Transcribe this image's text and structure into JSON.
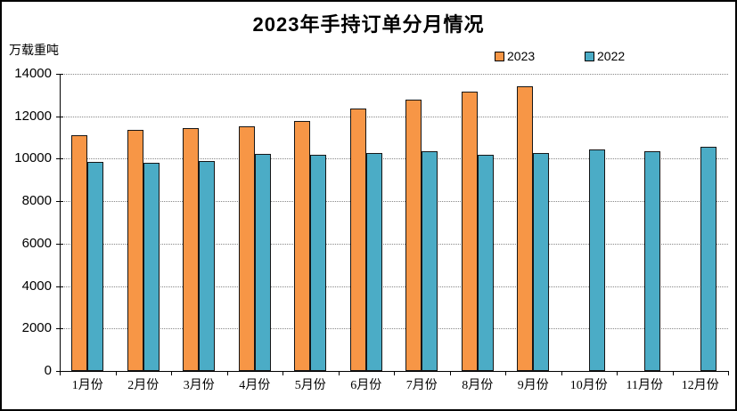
{
  "chart_data": {
    "type": "bar",
    "title": "2023年手持订单分月情况",
    "unit_label": "万载重吨",
    "categories": [
      "1月份",
      "2月份",
      "3月份",
      "4月份",
      "5月份",
      "6月份",
      "7月份",
      "8月份",
      "9月份",
      "10月份",
      "11月份",
      "12月份"
    ],
    "series": [
      {
        "name": "2023",
        "color": "#F79646",
        "values": [
          11109,
          11358,
          11452,
          11511,
          11799,
          12377,
          12790,
          13155,
          13393,
          null,
          null,
          null
        ]
      },
      {
        "name": "2022",
        "color": "#4BACC6",
        "values": [
          9843,
          9790,
          9896,
          10247,
          10190,
          10274,
          10366,
          10206,
          10264,
          10444,
          10349,
          10557
        ]
      }
    ],
    "ylim": [
      0,
      14000
    ],
    "ytick_step": 2000,
    "ytick_labels": [
      "0",
      "2000",
      "4000",
      "6000",
      "8000",
      "10000",
      "12000",
      "14000"
    ],
    "grid": "horizontal-dotted",
    "legend_position": "top-right",
    "bar_border_color": "#161616",
    "gridline_color": "#888888",
    "axis_color": "#000000"
  }
}
